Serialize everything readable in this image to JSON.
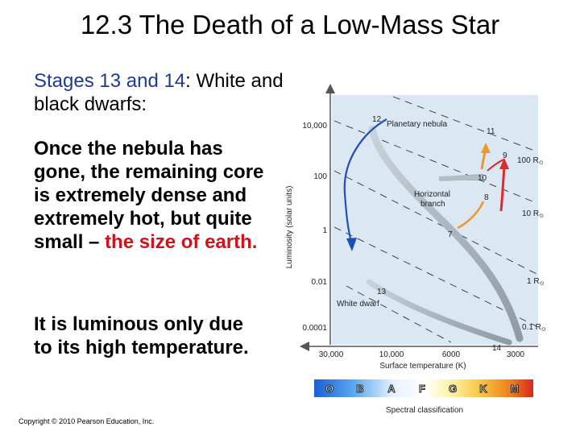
{
  "slide": {
    "title": "12.3 The Death of a Low-Mass Star",
    "p1_blue": "Stages 13 and 14",
    "p1_rest": ": White and black dwarfs:",
    "p2_main": "Once the nebula has gone, the remaining core is extremely dense and extremely hot, but quite small – ",
    "p2_red": "the size of earth.",
    "p3": "It is luminous only due to its high temperature.",
    "copyright": "Copyright © 2010 Pearson Education, Inc."
  },
  "diagram": {
    "ylabel": "Luminosity (solar units)",
    "xlabel": "Surface temperature (K)",
    "y_ticks": [
      "10,000",
      "100",
      "1",
      "0.01",
      "0.0001"
    ],
    "x_ticks": [
      "30,000",
      "10,000",
      "6000",
      "3000"
    ],
    "radius_labels": [
      "100 R",
      "10 R",
      "1 R",
      "0.1 R"
    ],
    "stage_numbers": [
      "12",
      "11",
      "9",
      "10",
      "8",
      "7",
      "13",
      "14"
    ],
    "region_labels": {
      "planetary": "Planetary nebula",
      "horizontal_1": "Horizontal",
      "horizontal_2": "branch",
      "white_dwarf": "White dwarf"
    },
    "spectral_classes": [
      "O",
      "B",
      "A",
      "F",
      "G",
      "K",
      "M"
    ],
    "spectral_label": "Spectral classification",
    "colors": {
      "panel": "#dbe7f2",
      "track": "#a8b4bc",
      "arrow_blue": "#1e4fb8",
      "arrow_red": "#e02a2a",
      "arrow_orange": "#f0962a"
    }
  }
}
